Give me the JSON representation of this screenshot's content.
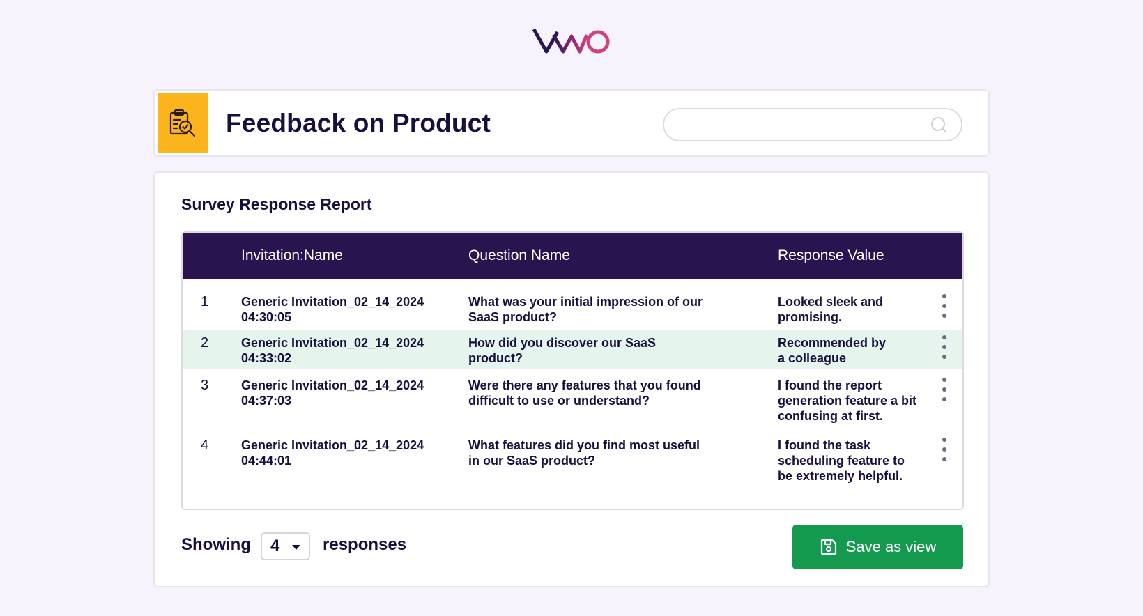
{
  "brand": {
    "name": "VWO"
  },
  "header": {
    "title": "Feedback on Product",
    "badge_icon": "clipboard-search-icon",
    "badge_color": "#fbb41b",
    "search": {
      "placeholder": "",
      "value": "",
      "icon": "search-icon"
    }
  },
  "report": {
    "title": "Survey Response Report",
    "columns": [
      "",
      "Invitation:Name",
      "Question Name",
      "Response Value"
    ],
    "header_color": "#28154f",
    "highlight_color": "#e6f4ee",
    "rows": [
      {
        "num": "1",
        "invitation_line1": "Generic Invitation_02_14_2024",
        "invitation_line2": "04:30:05",
        "question_line1": "What was your initial impression of our",
        "question_line2": "SaaS product?",
        "response_line1": "Looked sleek and",
        "response_line2": "promising.",
        "response_line3": ""
      },
      {
        "num": "2",
        "invitation_line1": "Generic Invitation_02_14_2024",
        "invitation_line2": "04:33:02",
        "question_line1": "How did you discover our SaaS",
        "question_line2": "product?",
        "response_line1": "Recommended by",
        "response_line2": "a colleague",
        "response_line3": ""
      },
      {
        "num": "3",
        "invitation_line1": "Generic Invitation_02_14_2024",
        "invitation_line2": "04:37:03",
        "question_line1": "Were there any features that you found",
        "question_line2": "difficult to use or understand?",
        "response_line1": "I found the report",
        "response_line2": "generation feature a bit",
        "response_line3": "confusing at first."
      },
      {
        "num": "4",
        "invitation_line1": "Generic Invitation_02_14_2024",
        "invitation_line2": "04:44:01",
        "question_line1": "What features did you find most useful",
        "question_line2": "in our SaaS product?",
        "response_line1": "I found the task",
        "response_line2": "scheduling feature to",
        "response_line3": "be extremely helpful."
      }
    ]
  },
  "footer": {
    "showing_label": "Showing",
    "page_size": "4",
    "responses_label": "responses",
    "save_label": "Save as view",
    "save_icon": "floppy-disk-icon",
    "save_color": "#149a4e"
  }
}
